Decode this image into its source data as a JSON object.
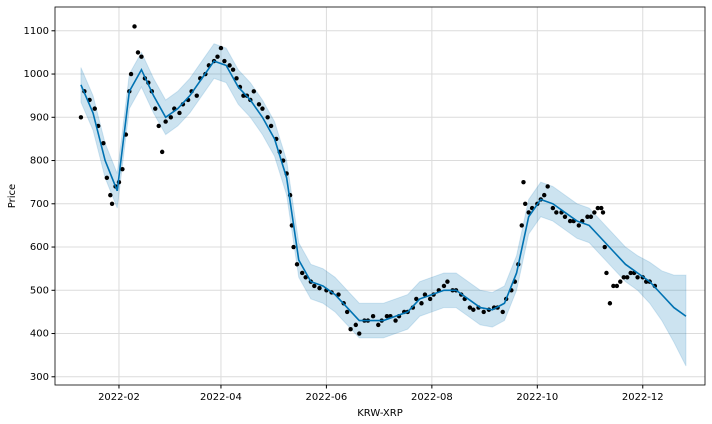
{
  "chart_data": {
    "type": "forecast",
    "x_label": "KRW-XRP",
    "y_label": "Price",
    "xlim": [
      "2021-12-26",
      "2023-01-06"
    ],
    "xticks": [
      {
        "value": "2022-02-01",
        "label": "2022-02"
      },
      {
        "value": "2022-04-01",
        "label": "2022-04"
      },
      {
        "value": "2022-06-01",
        "label": "2022-06"
      },
      {
        "value": "2022-08-01",
        "label": "2022-08"
      },
      {
        "value": "2022-10-01",
        "label": "2022-10"
      },
      {
        "value": "2022-12-01",
        "label": "2022-12"
      }
    ],
    "ylim": [
      281,
      1155
    ],
    "yticks": [
      300,
      400,
      500,
      600,
      700,
      800,
      900,
      1000,
      1100
    ],
    "grid": true,
    "observed": {
      "color": "#000000",
      "x": [
        "2022-01-10",
        "2022-01-12",
        "2022-01-15",
        "2022-01-18",
        "2022-01-20",
        "2022-01-23",
        "2022-01-25",
        "2022-01-27",
        "2022-01-28",
        "2022-01-30",
        "2022-02-01",
        "2022-02-03",
        "2022-02-05",
        "2022-02-07",
        "2022-02-08",
        "2022-02-10",
        "2022-02-12",
        "2022-02-14",
        "2022-02-16",
        "2022-02-18",
        "2022-02-20",
        "2022-02-22",
        "2022-02-24",
        "2022-02-26",
        "2022-02-28",
        "2022-03-03",
        "2022-03-05",
        "2022-03-08",
        "2022-03-10",
        "2022-03-13",
        "2022-03-15",
        "2022-03-18",
        "2022-03-20",
        "2022-03-23",
        "2022-03-25",
        "2022-03-28",
        "2022-03-30",
        "2022-04-01",
        "2022-04-03",
        "2022-04-06",
        "2022-04-08",
        "2022-04-10",
        "2022-04-12",
        "2022-04-14",
        "2022-04-16",
        "2022-04-18",
        "2022-04-20",
        "2022-04-23",
        "2022-04-25",
        "2022-04-28",
        "2022-04-30",
        "2022-05-03",
        "2022-05-05",
        "2022-05-07",
        "2022-05-09",
        "2022-05-11",
        "2022-05-12",
        "2022-05-13",
        "2022-05-15",
        "2022-05-18",
        "2022-05-20",
        "2022-05-23",
        "2022-05-25",
        "2022-05-28",
        "2022-06-01",
        "2022-06-04",
        "2022-06-08",
        "2022-06-11",
        "2022-06-13",
        "2022-06-15",
        "2022-06-18",
        "2022-06-20",
        "2022-06-23",
        "2022-06-25",
        "2022-06-28",
        "2022-07-01",
        "2022-07-03",
        "2022-07-06",
        "2022-07-08",
        "2022-07-11",
        "2022-07-13",
        "2022-07-16",
        "2022-07-18",
        "2022-07-21",
        "2022-07-23",
        "2022-07-26",
        "2022-07-28",
        "2022-07-31",
        "2022-08-02",
        "2022-08-05",
        "2022-08-08",
        "2022-08-10",
        "2022-08-13",
        "2022-08-15",
        "2022-08-18",
        "2022-08-20",
        "2022-08-23",
        "2022-08-25",
        "2022-08-28",
        "2022-08-31",
        "2022-09-03",
        "2022-09-06",
        "2022-09-08",
        "2022-09-11",
        "2022-09-13",
        "2022-09-16",
        "2022-09-18",
        "2022-09-20",
        "2022-09-22",
        "2022-09-23",
        "2022-09-24",
        "2022-09-26",
        "2022-09-28",
        "2022-10-01",
        "2022-10-03",
        "2022-10-05",
        "2022-10-07",
        "2022-10-10",
        "2022-10-12",
        "2022-10-15",
        "2022-10-17",
        "2022-10-20",
        "2022-10-22",
        "2022-10-25",
        "2022-10-27",
        "2022-10-30",
        "2022-11-01",
        "2022-11-03",
        "2022-11-05",
        "2022-11-07",
        "2022-11-08",
        "2022-11-09",
        "2022-11-10",
        "2022-11-12",
        "2022-11-14",
        "2022-11-16",
        "2022-11-18",
        "2022-11-20",
        "2022-11-22",
        "2022-11-24",
        "2022-11-26",
        "2022-11-28",
        "2022-12-01",
        "2022-12-03",
        "2022-12-05",
        "2022-12-08"
      ],
      "values": [
        900,
        960,
        940,
        920,
        880,
        840,
        760,
        720,
        700,
        740,
        750,
        780,
        860,
        960,
        1000,
        1110,
        1050,
        1040,
        990,
        980,
        960,
        920,
        880,
        820,
        890,
        900,
        920,
        910,
        930,
        940,
        960,
        950,
        990,
        1000,
        1020,
        1030,
        1040,
        1060,
        1030,
        1020,
        1010,
        990,
        970,
        950,
        950,
        940,
        960,
        930,
        920,
        900,
        880,
        850,
        820,
        800,
        770,
        720,
        650,
        600,
        560,
        540,
        530,
        520,
        510,
        505,
        500,
        495,
        490,
        470,
        450,
        410,
        420,
        400,
        430,
        430,
        440,
        420,
        430,
        440,
        440,
        430,
        440,
        450,
        450,
        460,
        480,
        470,
        490,
        480,
        490,
        500,
        510,
        520,
        500,
        500,
        490,
        480,
        460,
        455,
        460,
        450,
        455,
        460,
        460,
        450,
        480,
        500,
        520,
        560,
        650,
        750,
        700,
        680,
        690,
        700,
        710,
        720,
        740,
        690,
        680,
        680,
        670,
        660,
        660,
        650,
        660,
        670,
        670,
        680,
        690,
        690,
        680,
        600,
        540,
        470,
        510,
        510,
        520,
        530,
        530,
        540,
        540,
        530,
        530,
        520,
        520,
        510
      ]
    },
    "forecast": {
      "color": "#0072b2",
      "x": [
        "2022-01-10",
        "2022-01-17",
        "2022-01-24",
        "2022-01-31",
        "2022-02-07",
        "2022-02-14",
        "2022-02-21",
        "2022-02-28",
        "2022-03-07",
        "2022-03-14",
        "2022-03-21",
        "2022-03-28",
        "2022-04-04",
        "2022-04-11",
        "2022-04-18",
        "2022-04-25",
        "2022-05-02",
        "2022-05-09",
        "2022-05-16",
        "2022-05-23",
        "2022-05-30",
        "2022-06-06",
        "2022-06-13",
        "2022-06-20",
        "2022-06-27",
        "2022-07-04",
        "2022-07-11",
        "2022-07-18",
        "2022-07-25",
        "2022-08-01",
        "2022-08-08",
        "2022-08-15",
        "2022-08-22",
        "2022-08-29",
        "2022-09-05",
        "2022-09-12",
        "2022-09-19",
        "2022-09-26",
        "2022-10-03",
        "2022-10-10",
        "2022-10-17",
        "2022-10-24",
        "2022-10-31",
        "2022-11-07",
        "2022-11-14",
        "2022-11-21",
        "2022-11-28",
        "2022-12-05",
        "2022-12-12",
        "2022-12-19",
        "2022-12-26"
      ],
      "values": [
        975,
        910,
        800,
        730,
        960,
        1010,
        950,
        900,
        920,
        950,
        990,
        1030,
        1020,
        970,
        940,
        900,
        850,
        760,
        570,
        520,
        510,
        490,
        460,
        430,
        430,
        430,
        440,
        450,
        480,
        490,
        500,
        500,
        480,
        460,
        455,
        470,
        540,
        670,
        710,
        700,
        680,
        660,
        650,
        620,
        590,
        560,
        540,
        520,
        490,
        460,
        440
      ],
      "lower": [
        935,
        870,
        760,
        690,
        920,
        970,
        910,
        860,
        880,
        910,
        950,
        990,
        980,
        930,
        900,
        860,
        810,
        720,
        530,
        480,
        470,
        450,
        420,
        390,
        390,
        390,
        400,
        410,
        440,
        450,
        460,
        460,
        440,
        420,
        415,
        430,
        500,
        630,
        670,
        660,
        640,
        620,
        610,
        580,
        550,
        520,
        500,
        470,
        430,
        380,
        325
      ],
      "upper": [
        1015,
        950,
        840,
        770,
        1000,
        1050,
        990,
        940,
        960,
        990,
        1030,
        1070,
        1060,
        1010,
        980,
        940,
        890,
        800,
        610,
        560,
        550,
        530,
        500,
        470,
        470,
        470,
        480,
        490,
        520,
        530,
        540,
        540,
        520,
        500,
        495,
        510,
        580,
        710,
        750,
        740,
        720,
        700,
        690,
        660,
        630,
        600,
        580,
        565,
        545,
        535,
        535
      ]
    }
  }
}
